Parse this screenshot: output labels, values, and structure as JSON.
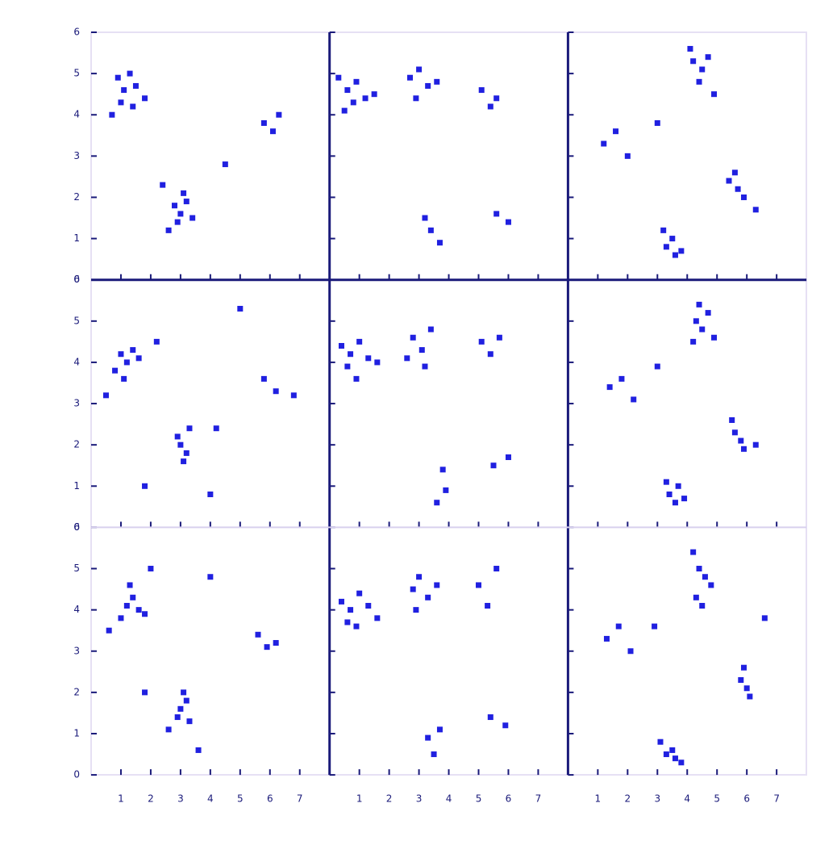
{
  "chart_data": [
    {
      "type": "scatter",
      "color": "#2020e0",
      "xlim": [
        0,
        8
      ],
      "ylim": [
        0,
        6
      ],
      "xticks": [
        1,
        2,
        3,
        4,
        5,
        6,
        7
      ],
      "yticks": [
        0,
        1,
        2,
        3,
        4,
        5,
        6
      ],
      "x": [
        0.9,
        1.1,
        1.3,
        1.5,
        1.0,
        1.4,
        0.7,
        1.8,
        2.8,
        3.0,
        3.2,
        2.9,
        3.1,
        2.6,
        3.4,
        2.4,
        5.8,
        6.1,
        6.3,
        4.5
      ],
      "y": [
        4.9,
        4.6,
        5.0,
        4.7,
        4.3,
        4.2,
        4.0,
        4.4,
        1.8,
        1.6,
        1.9,
        1.4,
        2.1,
        1.2,
        1.5,
        2.3,
        3.8,
        3.6,
        4.0,
        2.8
      ]
    },
    {
      "type": "scatter",
      "color": "#2020e0",
      "xlim": [
        0,
        8
      ],
      "ylim": [
        0,
        6
      ],
      "xticks": [
        1,
        2,
        3,
        4,
        5,
        6,
        7
      ],
      "yticks": [
        0,
        1,
        2,
        3,
        4,
        5,
        6
      ],
      "x": [
        0.3,
        0.6,
        0.9,
        1.2,
        0.5,
        0.8,
        1.5,
        2.7,
        3.0,
        3.3,
        3.6,
        2.9,
        5.1,
        5.4,
        5.6,
        3.4,
        3.7,
        3.2,
        5.6,
        6.0
      ],
      "y": [
        4.9,
        4.6,
        4.8,
        4.4,
        4.1,
        4.3,
        4.5,
        4.9,
        5.1,
        4.7,
        4.8,
        4.4,
        4.6,
        4.2,
        4.4,
        1.2,
        0.9,
        1.5,
        1.6,
        1.4
      ]
    },
    {
      "type": "scatter",
      "color": "#2020e0",
      "xlim": [
        0,
        8
      ],
      "ylim": [
        0,
        6
      ],
      "xticks": [
        1,
        2,
        3,
        4,
        5,
        6,
        7
      ],
      "yticks": [
        0,
        1,
        2,
        3,
        4,
        5,
        6
      ],
      "x": [
        4.2,
        4.5,
        4.7,
        4.4,
        4.1,
        5.4,
        5.7,
        5.6,
        5.9,
        3.3,
        3.6,
        3.5,
        3.8,
        3.2,
        1.2,
        1.6,
        2.0,
        3.0,
        6.3,
        4.9
      ],
      "y": [
        5.3,
        5.1,
        5.4,
        4.8,
        5.6,
        2.4,
        2.2,
        2.6,
        2.0,
        0.8,
        0.6,
        1.0,
        0.7,
        1.2,
        3.3,
        3.6,
        3.0,
        3.8,
        1.7,
        4.5
      ]
    },
    {
      "type": "scatter",
      "color": "#2020e0",
      "xlim": [
        0,
        8
      ],
      "ylim": [
        0,
        6
      ],
      "xticks": [
        1,
        2,
        3,
        4,
        5,
        6,
        7
      ],
      "yticks": [
        0,
        1,
        2,
        3,
        4,
        5,
        6
      ],
      "x": [
        1.0,
        1.2,
        1.4,
        0.8,
        1.6,
        1.1,
        2.2,
        3.0,
        3.2,
        2.9,
        3.3,
        3.1,
        1.8,
        5.8,
        6.2,
        6.8,
        4.2,
        5.0,
        0.5,
        4.0
      ],
      "y": [
        4.2,
        4.0,
        4.3,
        3.8,
        4.1,
        3.6,
        4.5,
        2.0,
        1.8,
        2.2,
        2.4,
        1.6,
        1.0,
        3.6,
        3.3,
        3.2,
        2.4,
        5.3,
        3.2,
        0.8
      ]
    },
    {
      "type": "scatter",
      "color": "#2020e0",
      "xlim": [
        0,
        8
      ],
      "ylim": [
        0,
        6
      ],
      "xticks": [
        1,
        2,
        3,
        4,
        5,
        6,
        7
      ],
      "yticks": [
        0,
        1,
        2,
        3,
        4,
        5,
        6
      ],
      "x": [
        0.4,
        0.7,
        1.0,
        1.3,
        0.6,
        0.9,
        1.6,
        2.8,
        3.1,
        3.4,
        2.6,
        3.2,
        5.1,
        5.4,
        5.7,
        3.8,
        3.6,
        3.9,
        5.5,
        6.0
      ],
      "y": [
        4.4,
        4.2,
        4.5,
        4.1,
        3.9,
        3.6,
        4.0,
        4.6,
        4.3,
        4.8,
        4.1,
        3.9,
        4.5,
        4.2,
        4.6,
        1.4,
        0.6,
        0.9,
        1.5,
        1.7
      ]
    },
    {
      "type": "scatter",
      "color": "#2020e0",
      "xlim": [
        0,
        8
      ],
      "ylim": [
        0,
        6
      ],
      "xticks": [
        1,
        2,
        3,
        4,
        5,
        6,
        7
      ],
      "yticks": [
        0,
        1,
        2,
        3,
        4,
        5,
        6
      ],
      "x": [
        4.3,
        4.5,
        4.7,
        4.2,
        4.4,
        5.6,
        5.8,
        5.5,
        5.9,
        3.4,
        3.6,
        3.7,
        3.3,
        3.9,
        1.4,
        1.8,
        2.2,
        3.0,
        4.9,
        6.3
      ],
      "y": [
        5.0,
        4.8,
        5.2,
        4.5,
        5.4,
        2.3,
        2.1,
        2.6,
        1.9,
        0.8,
        0.6,
        1.0,
        1.1,
        0.7,
        3.4,
        3.6,
        3.1,
        3.9,
        4.6,
        2.0
      ]
    },
    {
      "type": "scatter",
      "color": "#2020e0",
      "xlim": [
        0,
        8
      ],
      "ylim": [
        0,
        6
      ],
      "xticks": [
        1,
        2,
        3,
        4,
        5,
        6,
        7
      ],
      "yticks": [
        0,
        1,
        2,
        3,
        4,
        5,
        6
      ],
      "x": [
        1.2,
        1.4,
        1.6,
        1.3,
        1.0,
        1.8,
        0.6,
        3.0,
        3.2,
        2.9,
        3.1,
        3.3,
        2.6,
        5.6,
        5.9,
        6.2,
        1.8,
        2.0,
        4.0,
        3.6
      ],
      "y": [
        4.1,
        4.3,
        4.0,
        4.6,
        3.8,
        3.9,
        3.5,
        1.6,
        1.8,
        1.4,
        2.0,
        1.3,
        1.1,
        3.4,
        3.1,
        3.2,
        2.0,
        5.0,
        4.8,
        0.6
      ]
    },
    {
      "type": "scatter",
      "color": "#2020e0",
      "xlim": [
        0,
        8
      ],
      "ylim": [
        0,
        6
      ],
      "xticks": [
        1,
        2,
        3,
        4,
        5,
        6,
        7
      ],
      "yticks": [
        0,
        1,
        2,
        3,
        4,
        5,
        6
      ],
      "x": [
        0.4,
        0.7,
        1.0,
        1.3,
        0.6,
        0.9,
        1.6,
        2.8,
        3.0,
        3.3,
        3.6,
        2.9,
        5.0,
        5.3,
        5.6,
        3.7,
        3.5,
        3.3,
        5.4,
        5.9
      ],
      "y": [
        4.2,
        4.0,
        4.4,
        4.1,
        3.7,
        3.6,
        3.8,
        4.5,
        4.8,
        4.3,
        4.6,
        4.0,
        4.6,
        4.1,
        5.0,
        1.1,
        0.5,
        0.9,
        1.4,
        1.2
      ]
    },
    {
      "type": "scatter",
      "color": "#2020e0",
      "xlim": [
        0,
        8
      ],
      "ylim": [
        0,
        6
      ],
      "xticks": [
        1,
        2,
        3,
        4,
        5,
        6,
        7
      ],
      "yticks": [
        0,
        1,
        2,
        3,
        4,
        5,
        6
      ],
      "x": [
        4.4,
        4.6,
        4.3,
        4.5,
        4.2,
        5.8,
        6.0,
        5.9,
        6.1,
        3.3,
        3.6,
        3.5,
        3.8,
        3.1,
        1.3,
        1.7,
        2.1,
        2.9,
        6.6,
        4.8
      ],
      "y": [
        5.0,
        4.8,
        4.3,
        4.1,
        5.4,
        2.3,
        2.1,
        2.6,
        1.9,
        0.5,
        0.4,
        0.6,
        0.3,
        0.8,
        3.3,
        3.6,
        3.0,
        3.6,
        3.8,
        4.6
      ]
    }
  ]
}
